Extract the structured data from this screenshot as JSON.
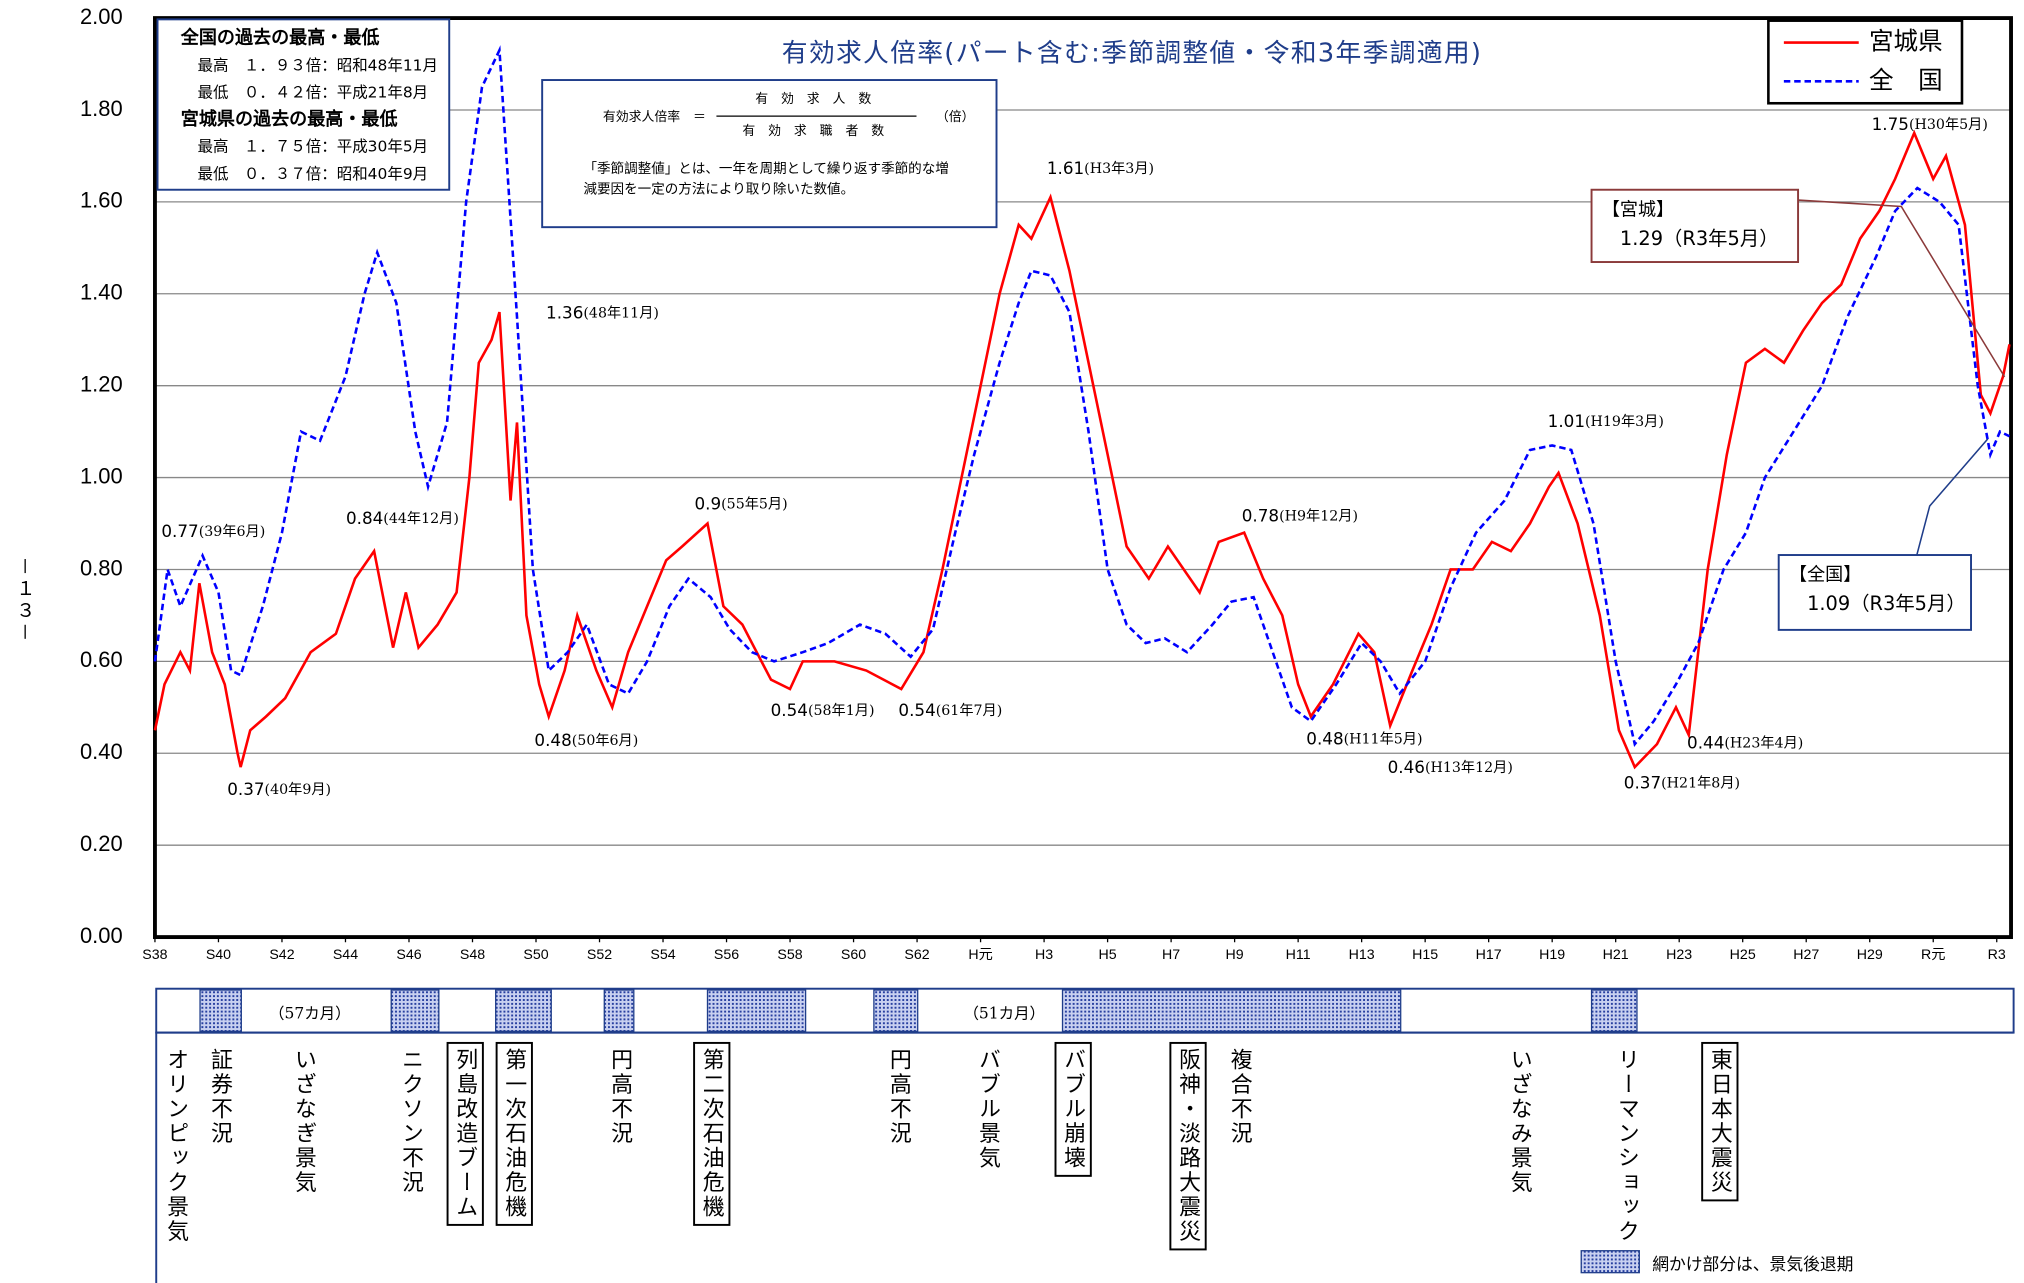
{
  "page_number": "－１３－",
  "chart_data": {
    "type": "line",
    "title": "有効求人倍率(パート含む:季節調整値・令和3年季調適用)",
    "xlim": [
      1963,
      2021.45
    ],
    "ylim": [
      0,
      2
    ],
    "yticks": [
      {
        "value": 0,
        "label": "0.00"
      },
      {
        "value": 0.2,
        "label": "0.20"
      },
      {
        "value": 0.4,
        "label": "0.40"
      },
      {
        "value": 0.6,
        "label": "0.60"
      },
      {
        "value": 0.8,
        "label": "0.80"
      },
      {
        "value": 1,
        "label": "1.00"
      },
      {
        "value": 1.2,
        "label": "1.20"
      },
      {
        "value": 1.4,
        "label": "1.40"
      },
      {
        "value": 1.6,
        "label": "1.60"
      },
      {
        "value": 1.8,
        "label": "1.80"
      },
      {
        "value": 2,
        "label": "2.00"
      }
    ],
    "xticks": [
      {
        "value": 1963,
        "label": "S38"
      },
      {
        "value": 1965,
        "label": "S40"
      },
      {
        "value": 1967,
        "label": "S42"
      },
      {
        "value": 1969,
        "label": "S44"
      },
      {
        "value": 1971,
        "label": "S46"
      },
      {
        "value": 1973,
        "label": "S48"
      },
      {
        "value": 1975,
        "label": "S50"
      },
      {
        "value": 1977,
        "label": "S52"
      },
      {
        "value": 1979,
        "label": "S54"
      },
      {
        "value": 1981,
        "label": "S56"
      },
      {
        "value": 1983,
        "label": "S58"
      },
      {
        "value": 1985,
        "label": "S60"
      },
      {
        "value": 1987,
        "label": "S62"
      },
      {
        "value": 1989,
        "label": "H元"
      },
      {
        "value": 1991,
        "label": "H3"
      },
      {
        "value": 1993,
        "label": "H5"
      },
      {
        "value": 1995,
        "label": "H7"
      },
      {
        "value": 1997,
        "label": "H9"
      },
      {
        "value": 1999,
        "label": "H11"
      },
      {
        "value": 2001,
        "label": "H13"
      },
      {
        "value": 2003,
        "label": "H15"
      },
      {
        "value": 2005,
        "label": "H17"
      },
      {
        "value": 2007,
        "label": "H19"
      },
      {
        "value": 2009,
        "label": "H21"
      },
      {
        "value": 2011,
        "label": "H23"
      },
      {
        "value": 2013,
        "label": "H25"
      },
      {
        "value": 2015,
        "label": "H27"
      },
      {
        "value": 2017,
        "label": "H29"
      },
      {
        "value": 2019,
        "label": "R元"
      },
      {
        "value": 2021,
        "label": "R3"
      }
    ],
    "grid": true,
    "series": [
      {
        "name": "宮城県",
        "color": "#ff0000",
        "dash": false,
        "x": [
          1963.0,
          1963.3,
          1963.8,
          1964.1,
          1964.4,
          1964.8,
          1965.2,
          1965.6,
          1965.7,
          1966.0,
          1966.5,
          1967.1,
          1967.9,
          1968.7,
          1969.3,
          1969.9,
          1970.5,
          1970.9,
          1971.3,
          1971.9,
          1972.5,
          1972.9,
          1973.2,
          1973.6,
          1973.85,
          1974.2,
          1974.4,
          1974.7,
          1975.1,
          1975.4,
          1975.9,
          1976.3,
          1976.9,
          1977.4,
          1977.9,
          1978.5,
          1979.1,
          1979.6,
          1980.4,
          1980.9,
          1981.5,
          1982.1,
          1982.4,
          1983.0,
          1983.4,
          1984.4,
          1985.4,
          1986.5,
          1987.2,
          1987.8,
          1988.4,
          1989.0,
          1989.6,
          1990.2,
          1990.6,
          1991.2,
          1991.8,
          1992.4,
          1993.0,
          1993.6,
          1994.3,
          1994.9,
          1995.4,
          1995.9,
          1996.5,
          1997.3,
          1997.9,
          1998.5,
          1999.0,
          1999.4,
          2000.1,
          2000.9,
          2001.4,
          2001.9,
          2002.6,
          2003.2,
          2003.8,
          2004.5,
          2005.1,
          2005.7,
          2006.3,
          2006.9,
          2007.2,
          2007.8,
          2008.5,
          2009.1,
          2009.6,
          2010.3,
          2010.9,
          2011.3,
          2011.9,
          2012.5,
          2013.1,
          2013.7,
          2014.3,
          2014.9,
          2015.5,
          2016.1,
          2016.7,
          2017.3,
          2017.8,
          2018.4,
          2019.0,
          2019.4,
          2020.0,
          2020.5,
          2020.8,
          2021.2,
          2021.4
        ],
        "values": [
          0.45,
          0.55,
          0.62,
          0.58,
          0.77,
          0.62,
          0.55,
          0.4,
          0.37,
          0.45,
          0.48,
          0.52,
          0.62,
          0.66,
          0.78,
          0.84,
          0.63,
          0.75,
          0.63,
          0.68,
          0.75,
          1.0,
          1.25,
          1.3,
          1.36,
          0.95,
          1.12,
          0.7,
          0.55,
          0.48,
          0.58,
          0.7,
          0.58,
          0.5,
          0.62,
          0.72,
          0.82,
          0.85,
          0.9,
          0.72,
          0.68,
          0.6,
          0.56,
          0.54,
          0.6,
          0.6,
          0.58,
          0.54,
          0.62,
          0.8,
          1.0,
          1.2,
          1.4,
          1.55,
          1.52,
          1.61,
          1.45,
          1.25,
          1.05,
          0.85,
          0.78,
          0.85,
          0.8,
          0.75,
          0.86,
          0.88,
          0.78,
          0.7,
          0.55,
          0.48,
          0.55,
          0.66,
          0.62,
          0.46,
          0.58,
          0.68,
          0.8,
          0.8,
          0.86,
          0.84,
          0.9,
          0.98,
          1.01,
          0.9,
          0.7,
          0.45,
          0.37,
          0.42,
          0.5,
          0.44,
          0.8,
          1.05,
          1.25,
          1.28,
          1.25,
          1.32,
          1.38,
          1.42,
          1.52,
          1.58,
          1.65,
          1.75,
          1.65,
          1.7,
          1.55,
          1.18,
          1.14,
          1.22,
          1.29
        ]
      },
      {
        "name": "全　国",
        "color": "#0000ff",
        "dash": true,
        "x": [
          1963.0,
          1963.4,
          1963.8,
          1964.5,
          1965.0,
          1965.4,
          1965.7,
          1966.4,
          1967.0,
          1967.6,
          1968.2,
          1969.0,
          1969.6,
          1970.0,
          1970.6,
          1971.2,
          1971.6,
          1972.2,
          1972.8,
          1973.3,
          1973.85,
          1974.4,
          1974.9,
          1975.4,
          1976.0,
          1976.6,
          1977.3,
          1977.9,
          1978.5,
          1979.2,
          1979.8,
          1980.5,
          1981.1,
          1981.8,
          1982.5,
          1983.4,
          1984.2,
          1985.2,
          1986.0,
          1986.8,
          1987.5,
          1988.2,
          1988.8,
          1989.6,
          1990.2,
          1990.6,
          1991.2,
          1991.8,
          1992.4,
          1993.0,
          1993.6,
          1994.2,
          1994.8,
          1995.5,
          1996.3,
          1996.9,
          1997.6,
          1998.2,
          1998.8,
          1999.4,
          2000.2,
          2001.0,
          2001.6,
          2002.2,
          2003.0,
          2003.8,
          2004.6,
          2005.5,
          2006.3,
          2007.0,
          2007.6,
          2008.3,
          2009.0,
          2009.6,
          2010.2,
          2010.9,
          2011.6,
          2012.4,
          2013.1,
          2013.7,
          2014.6,
          2015.5,
          2016.3,
          2017.2,
          2017.8,
          2018.5,
          2019.2,
          2019.8,
          2020.4,
          2020.8,
          2021.1,
          2021.4
        ],
        "values": [
          0.6,
          0.8,
          0.72,
          0.83,
          0.75,
          0.58,
          0.57,
          0.72,
          0.88,
          1.1,
          1.08,
          1.22,
          1.4,
          1.49,
          1.38,
          1.1,
          0.98,
          1.12,
          1.6,
          1.85,
          1.93,
          1.35,
          0.8,
          0.58,
          0.62,
          0.68,
          0.55,
          0.53,
          0.6,
          0.72,
          0.78,
          0.74,
          0.67,
          0.62,
          0.6,
          0.62,
          0.64,
          0.68,
          0.66,
          0.61,
          0.67,
          0.88,
          1.05,
          1.25,
          1.38,
          1.45,
          1.44,
          1.36,
          1.1,
          0.8,
          0.68,
          0.64,
          0.65,
          0.62,
          0.68,
          0.73,
          0.74,
          0.62,
          0.5,
          0.47,
          0.55,
          0.64,
          0.6,
          0.53,
          0.6,
          0.76,
          0.88,
          0.95,
          1.06,
          1.07,
          1.06,
          0.9,
          0.6,
          0.42,
          0.47,
          0.55,
          0.64,
          0.8,
          0.88,
          1.0,
          1.1,
          1.2,
          1.35,
          1.48,
          1.58,
          1.63,
          1.6,
          1.55,
          1.2,
          1.05,
          1.1,
          1.09
        ]
      }
    ],
    "annotations": [
      {
        "value": 0.77,
        "label": "(39年6月)"
      },
      {
        "value": 0.37,
        "label": "(40年9月)"
      },
      {
        "value": 0.84,
        "label": "(44年12月)"
      },
      {
        "value": 1.36,
        "label": "(48年11月)"
      },
      {
        "value": 0.48,
        "label": "(50年6月)"
      },
      {
        "value": 0.9,
        "label": "(55年5月)"
      },
      {
        "value": 0.54,
        "label": "(58年1月)"
      },
      {
        "value": 0.54,
        "label": "(61年7月)"
      },
      {
        "value": 1.61,
        "label": "(H3年3月)"
      },
      {
        "value": 0.78,
        "label": "(H9年12月)"
      },
      {
        "value": 0.48,
        "label": "(H11年5月)"
      },
      {
        "value": 0.46,
        "label": "(H13年12月)"
      },
      {
        "value": 1.01,
        "label": "(H19年3月)"
      },
      {
        "value": 0.37,
        "label": "(H21年8月)"
      },
      {
        "value": 0.44,
        "label": "(H23年4月)"
      },
      {
        "value": 1.75,
        "label": "(H30年5月)"
      }
    ],
    "callouts": [
      {
        "title": "【宮城】",
        "value": 1.29,
        "label": "（R3年5月）"
      },
      {
        "title": "【全国】",
        "value": 1.09,
        "label": "（R3年5月）"
      }
    ],
    "records_box": [
      "全国の過去の最高・最低",
      "最高　１．９３倍：昭和48年11月",
      "最低　０．４２倍：平成21年8月",
      "宮城県の過去の最高・最低",
      "最高　１．７５倍：平成30年5月",
      "最低　０．３７倍：昭和40年9月"
    ],
    "formula": {
      "lhs": "有効求人倍率　＝",
      "numerator": "有　効　求　人　数",
      "denominator": "有　効　求　職　者　数",
      "unit": "（倍）",
      "note": [
        "「季節調整値」とは、一年を周期として繰り返す季節的な増",
        "減要因を一定の方法により取り除いた数値。"
      ]
    },
    "recessions": [
      [
        1964.42,
        1965.72
      ],
      [
        1970.44,
        1971.94
      ],
      [
        1973.73,
        1975.48
      ],
      [
        1977.15,
        1978.08
      ],
      [
        1980.4,
        1983.49
      ],
      [
        1985.64,
        1987.02
      ],
      [
        1991.58,
        2002.23
      ],
      [
        2008.24,
        2009.67
      ]
    ],
    "band_notes": [
      "（57カ月）",
      "（51カ月）"
    ],
    "events": [
      {
        "label": "オリンピック景気",
        "boxed": false
      },
      {
        "label": "証券不況",
        "boxed": false
      },
      {
        "label": "いざなぎ景気",
        "boxed": false
      },
      {
        "label": "ニクソン不況",
        "boxed": false
      },
      {
        "label": "列島改造ブーム",
        "boxed": true
      },
      {
        "label": "第一次石油危機",
        "boxed": true
      },
      {
        "label": "円高不況",
        "boxed": false
      },
      {
        "label": "第二次石油危機",
        "boxed": true
      },
      {
        "label": "円高不況",
        "boxed": false
      },
      {
        "label": "バブル景気",
        "boxed": false
      },
      {
        "label": "バブル崩壊",
        "boxed": true
      },
      {
        "label": "阪神・淡路大震災",
        "boxed": true
      },
      {
        "label": "複合不況",
        "boxed": false
      },
      {
        "label": "いざなみ景気",
        "boxed": false
      },
      {
        "label": "リーマンショック",
        "boxed": false
      },
      {
        "label": "東日本大震災",
        "boxed": true
      }
    ],
    "shade_note": "網かけ部分は、景気後退期"
  }
}
